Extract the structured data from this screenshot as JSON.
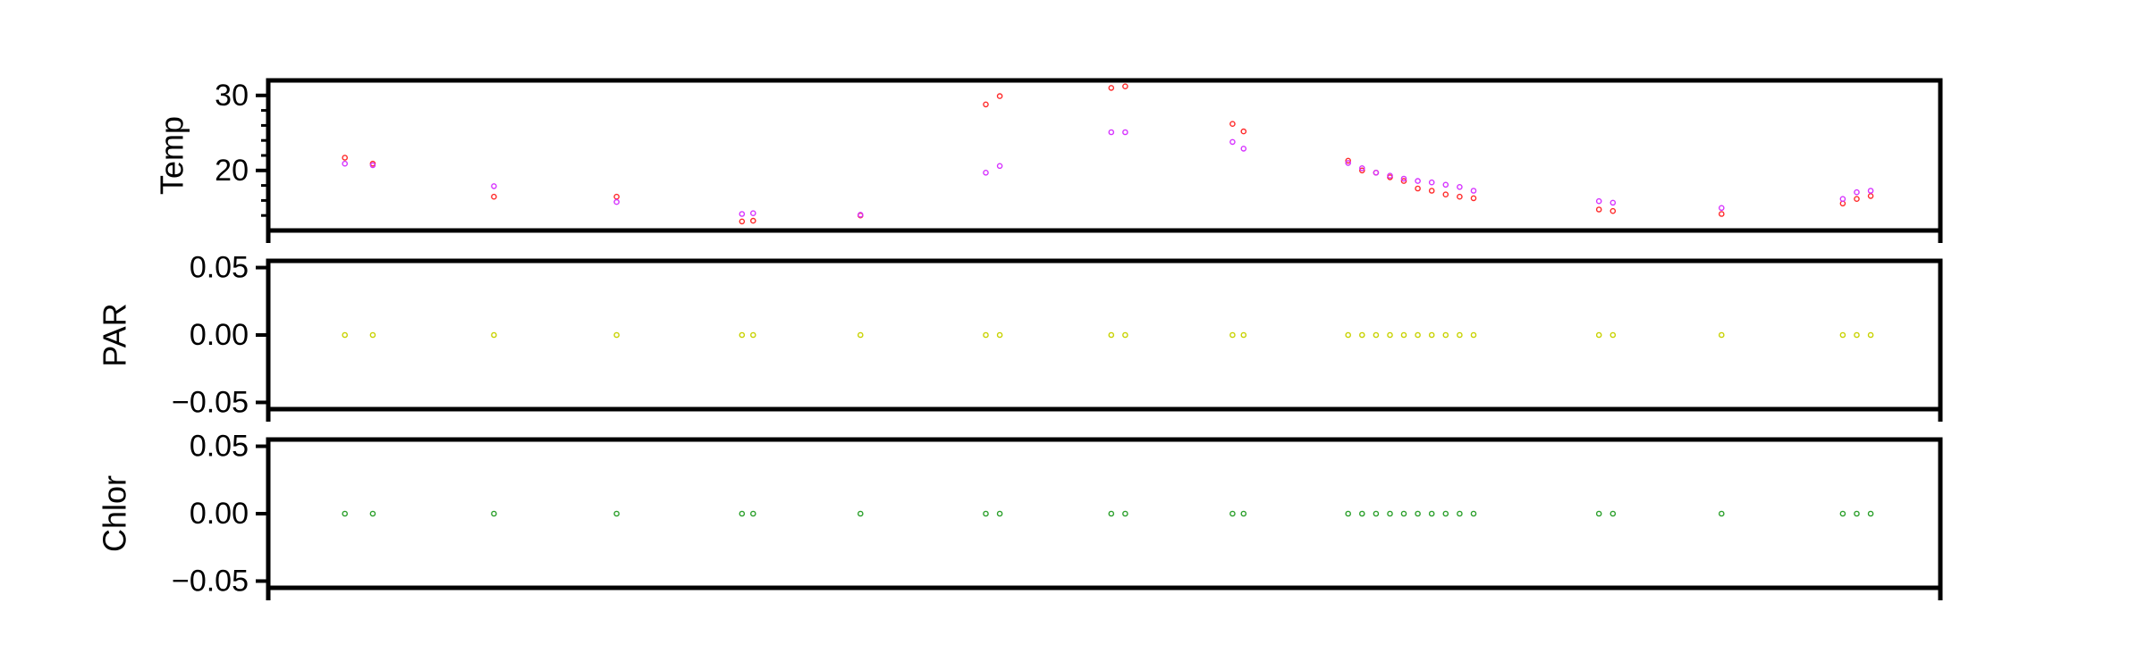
{
  "chart_data": [
    {
      "type": "scatter",
      "ylabel": "Temp",
      "ylim": [
        12,
        32
      ],
      "yticks": [
        20,
        30
      ],
      "ytick_labels": [
        "20",
        "30"
      ],
      "minor_yticks": [
        14,
        16,
        18,
        22,
        24,
        26,
        28
      ],
      "xlim": [
        0,
        120
      ],
      "series": [
        {
          "color": "#ff2a2a",
          "x": [
            5.5,
            7.5,
            16.2,
            25,
            34,
            34.8,
            42.5,
            51.5,
            52.5,
            60.5,
            61.5,
            69.2,
            70,
            77.5,
            78.5,
            79.5,
            80.5,
            81.5,
            82.5,
            83.5,
            84.5,
            85.5,
            86.5,
            95.5,
            96.5,
            104.3,
            113,
            114,
            115
          ],
          "y": [
            21.7,
            20.9,
            16.5,
            16.5,
            13.2,
            13.3,
            14.0,
            28.8,
            29.9,
            31.0,
            31.2,
            26.2,
            25.2,
            21.3,
            20.0,
            19.7,
            19.1,
            18.6,
            17.6,
            17.3,
            16.8,
            16.5,
            16.3,
            14.8,
            14.6,
            14.2,
            15.6,
            16.2,
            16.6
          ]
        },
        {
          "color": "#d633ff",
          "x": [
            5.5,
            7.5,
            16.2,
            25,
            34,
            34.8,
            42.5,
            51.5,
            52.5,
            60.5,
            61.5,
            69.2,
            70,
            77.5,
            78.5,
            79.5,
            80.5,
            81.5,
            82.5,
            83.5,
            84.5,
            85.5,
            86.5,
            95.5,
            96.5,
            104.3,
            113,
            114,
            115
          ],
          "y": [
            20.9,
            20.7,
            17.9,
            15.8,
            14.2,
            14.3,
            14.1,
            19.7,
            20.6,
            25.1,
            25.1,
            23.8,
            22.9,
            21.0,
            20.3,
            19.7,
            19.3,
            18.9,
            18.6,
            18.4,
            18.1,
            17.8,
            17.3,
            15.9,
            15.7,
            15.0,
            16.2,
            17.1,
            17.3
          ]
        }
      ]
    },
    {
      "type": "scatter",
      "ylabel": "PAR",
      "ylim": [
        -0.055,
        0.055
      ],
      "yticks": [
        -0.05,
        0.0,
        0.05
      ],
      "ytick_labels": [
        "−0.05",
        "0.00",
        "0.05"
      ],
      "xlim": [
        0,
        120
      ],
      "series": [
        {
          "color": "#c8d200",
          "x": [
            5.5,
            7.5,
            16.2,
            25,
            34,
            34.8,
            42.5,
            51.5,
            52.5,
            60.5,
            61.5,
            69.2,
            70,
            77.5,
            78.5,
            79.5,
            80.5,
            81.5,
            82.5,
            83.5,
            84.5,
            85.5,
            86.5,
            95.5,
            96.5,
            104.3,
            113,
            114,
            115
          ],
          "y": [
            0,
            0,
            0,
            0,
            0,
            0,
            0,
            0,
            0,
            0,
            0,
            0,
            0,
            0,
            0,
            0,
            0,
            0,
            0,
            0,
            0,
            0,
            0,
            0,
            0,
            0,
            0,
            0,
            0
          ]
        }
      ]
    },
    {
      "type": "scatter",
      "ylabel": "Chlor",
      "ylim": [
        -0.055,
        0.055
      ],
      "yticks": [
        -0.05,
        0.0,
        0.05
      ],
      "ytick_labels": [
        "−0.05",
        "0.00",
        "0.05"
      ],
      "xlim": [
        0,
        120
      ],
      "series": [
        {
          "color": "#2ca02c",
          "x": [
            5.5,
            7.5,
            16.2,
            25,
            34,
            34.8,
            42.5,
            51.5,
            52.5,
            60.5,
            61.5,
            69.2,
            70,
            77.5,
            78.5,
            79.5,
            80.5,
            81.5,
            82.5,
            83.5,
            84.5,
            85.5,
            86.5,
            95.5,
            96.5,
            104.3,
            113,
            114,
            115
          ],
          "y": [
            0,
            0,
            0,
            0,
            0,
            0,
            0,
            0,
            0,
            0,
            0,
            0,
            0,
            0,
            0,
            0,
            0,
            0,
            0,
            0,
            0,
            0,
            0,
            0,
            0,
            0,
            0,
            0,
            0
          ]
        }
      ]
    }
  ]
}
